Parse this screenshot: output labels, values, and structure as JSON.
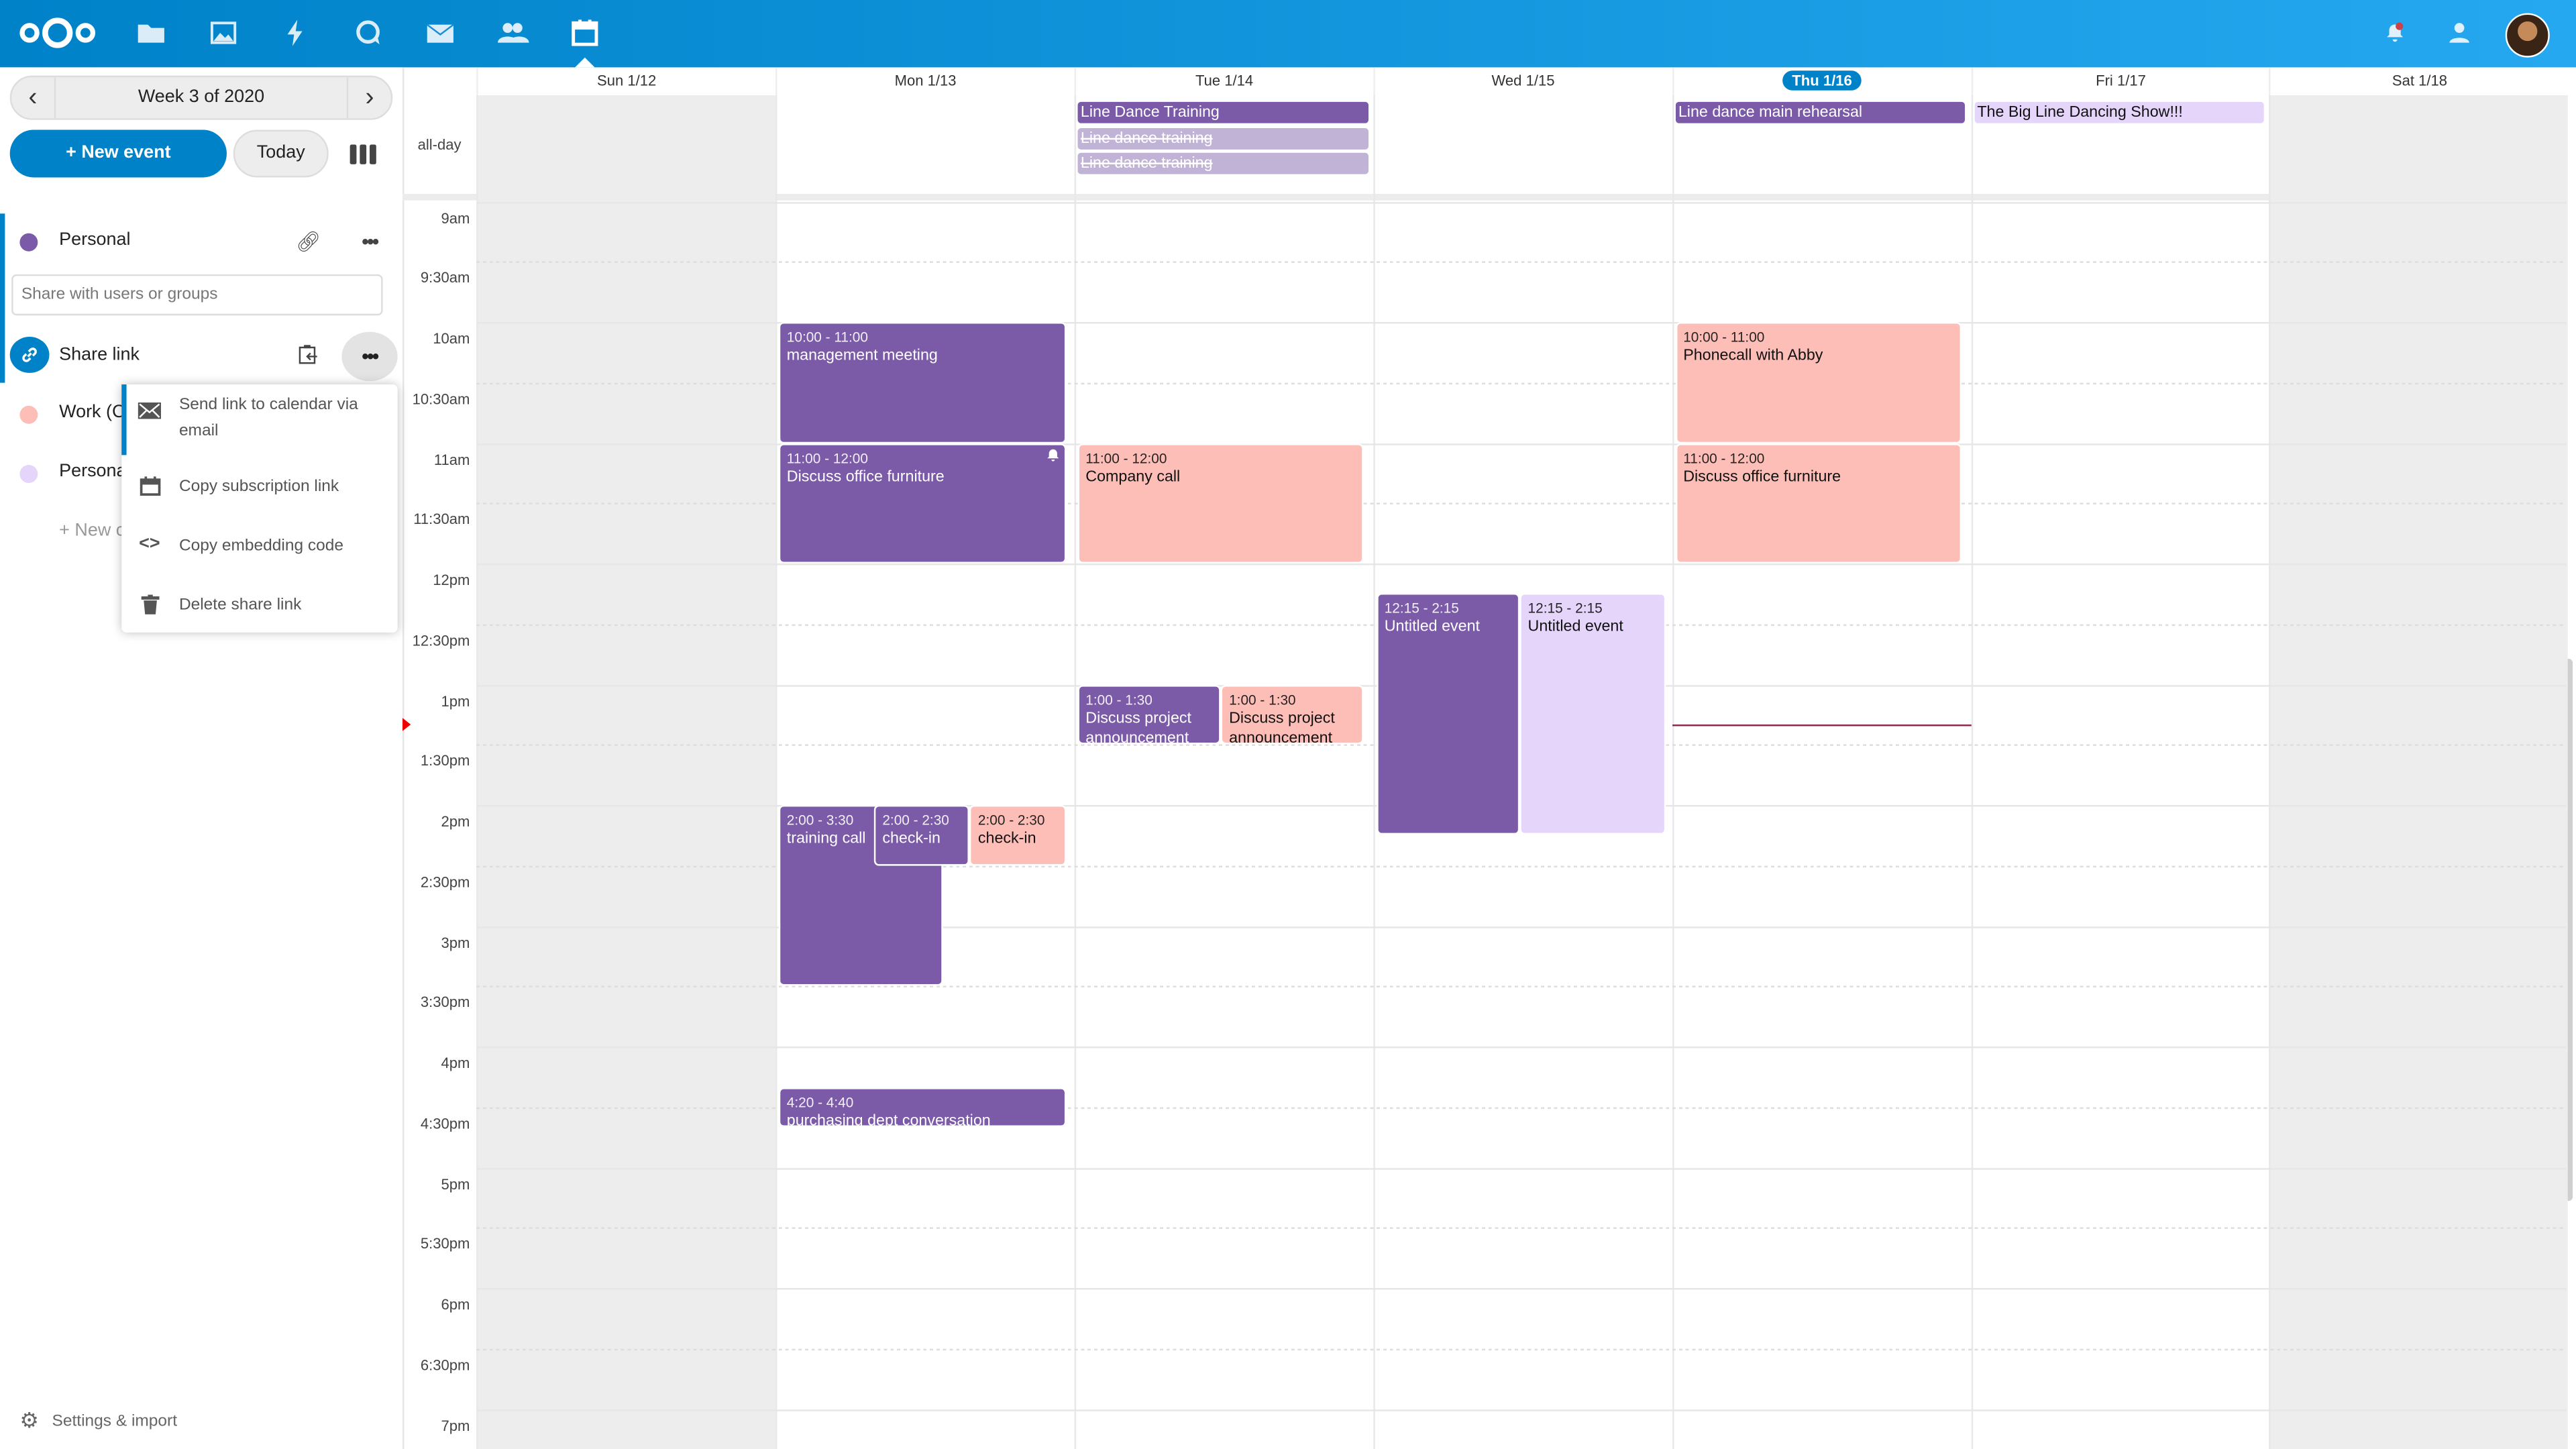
{
  "header": {
    "apps": [
      {
        "icon": "files-icon",
        "label": "Files"
      },
      {
        "icon": "photos-icon",
        "label": "Photos"
      },
      {
        "icon": "activity-icon",
        "label": "Activity"
      },
      {
        "icon": "talk-icon",
        "label": "Talk"
      },
      {
        "icon": "mail-icon",
        "label": "Mail"
      },
      {
        "icon": "contacts-icon",
        "label": "Contacts"
      },
      {
        "icon": "calendar-icon",
        "label": "Calendar",
        "active": true
      }
    ],
    "brand_color": "#0082c9"
  },
  "sidebar": {
    "week_label": "Week 3 of 2020",
    "new_event_label": "+ New event",
    "today_label": "Today",
    "calendars": [
      {
        "name": "Personal",
        "color": "#7b5aa8"
      },
      {
        "name": "Work (C",
        "color": "#fdbeb8"
      },
      {
        "name": "Persona",
        "color": "#e5d5fb"
      }
    ],
    "share_placeholder": "Share with users or groups",
    "share_link_label": "Share link",
    "new_calendar_label": "+ New c",
    "settings_label": "Settings & import",
    "share_menu": [
      {
        "icon": "mail-icon",
        "label": "Send link to calendar via email"
      },
      {
        "icon": "calendar-icon",
        "label": "Copy subscription link"
      },
      {
        "icon": "code-icon",
        "label": "Copy embedding code"
      },
      {
        "icon": "trash-icon",
        "label": "Delete share link"
      }
    ]
  },
  "calendar": {
    "days": [
      "Sun 1/12",
      "Mon 1/13",
      "Tue 1/14",
      "Wed 1/15",
      "Thu 1/16",
      "Fri 1/17",
      "Sat 1/18"
    ],
    "today_index": 4,
    "allday_label": "all-day",
    "time_labels": [
      "9am",
      "9:30am",
      "10am",
      "10:30am",
      "11am",
      "11:30am",
      "12pm",
      "12:30pm",
      "1pm",
      "1:30pm",
      "2pm",
      "2:30pm",
      "3pm",
      "3:30pm",
      "4pm",
      "4:30pm",
      "5pm",
      "5:30pm",
      "6pm",
      "6:30pm",
      "7pm"
    ],
    "allday_events": [
      {
        "day": 2,
        "title": "Line Dance Training",
        "style": "purple"
      },
      {
        "day": 2,
        "title": "Line dance training",
        "style": "faded"
      },
      {
        "day": 2,
        "title": "Line dance training",
        "style": "faded"
      },
      {
        "day": 4,
        "title": "Line dance main rehearsal",
        "style": "purple"
      },
      {
        "day": 5,
        "title": "The Big Line Dancing Show!!!",
        "style": "light"
      }
    ],
    "events": [
      {
        "day": 1,
        "start": "10:00",
        "end": "11:00",
        "time": "10:00 - 11:00",
        "title": "management meeting",
        "style": "purple"
      },
      {
        "day": 1,
        "start": "11:00",
        "end": "12:00",
        "time": "11:00 - 12:00",
        "title": "Discuss office furniture",
        "style": "purple",
        "alarm": true
      },
      {
        "day": 1,
        "start": "14:00",
        "end": "15:30",
        "time": "2:00 - 3:30",
        "title": "training call",
        "style": "purple"
      },
      {
        "day": 1,
        "start": "14:00",
        "end": "14:30",
        "time": "2:00 - 2:30",
        "title": "check-in",
        "style": "purple"
      },
      {
        "day": 1,
        "start": "14:00",
        "end": "14:30",
        "time": "2:00 - 2:30",
        "title": "check-in",
        "style": "pink"
      },
      {
        "day": 1,
        "start": "16:20",
        "end": "16:40",
        "time": "4:20 - 4:40",
        "title": "purchasing dept conversation",
        "style": "purple"
      },
      {
        "day": 2,
        "start": "11:00",
        "end": "12:00",
        "time": "11:00 - 12:00",
        "title": "Company call",
        "style": "pink"
      },
      {
        "day": 2,
        "start": "13:00",
        "end": "13:30",
        "time": "1:00 - 1:30",
        "title": "Discuss project announcement",
        "style": "purple"
      },
      {
        "day": 2,
        "start": "13:00",
        "end": "13:30",
        "time": "1:00 - 1:30",
        "title": "Discuss project announcement",
        "style": "pink"
      },
      {
        "day": 3,
        "start": "12:15",
        "end": "14:15",
        "time": "12:15 - 2:15",
        "title": "Untitled event",
        "style": "purple"
      },
      {
        "day": 3,
        "start": "12:15",
        "end": "14:15",
        "time": "12:15 - 2:15",
        "title": "Untitled event",
        "style": "light"
      },
      {
        "day": 4,
        "start": "10:00",
        "end": "11:00",
        "time": "10:00 - 11:00",
        "title": "Phonecall with Abby",
        "style": "pink"
      },
      {
        "day": 4,
        "start": "11:00",
        "end": "12:00",
        "time": "11:00 - 12:00",
        "title": "Discuss office furniture",
        "style": "pink"
      }
    ],
    "current_time": "13:20",
    "colors": {
      "purple": "#7b5aa8",
      "pink": "#fdbeb8",
      "light": "#e5d5fb"
    }
  }
}
